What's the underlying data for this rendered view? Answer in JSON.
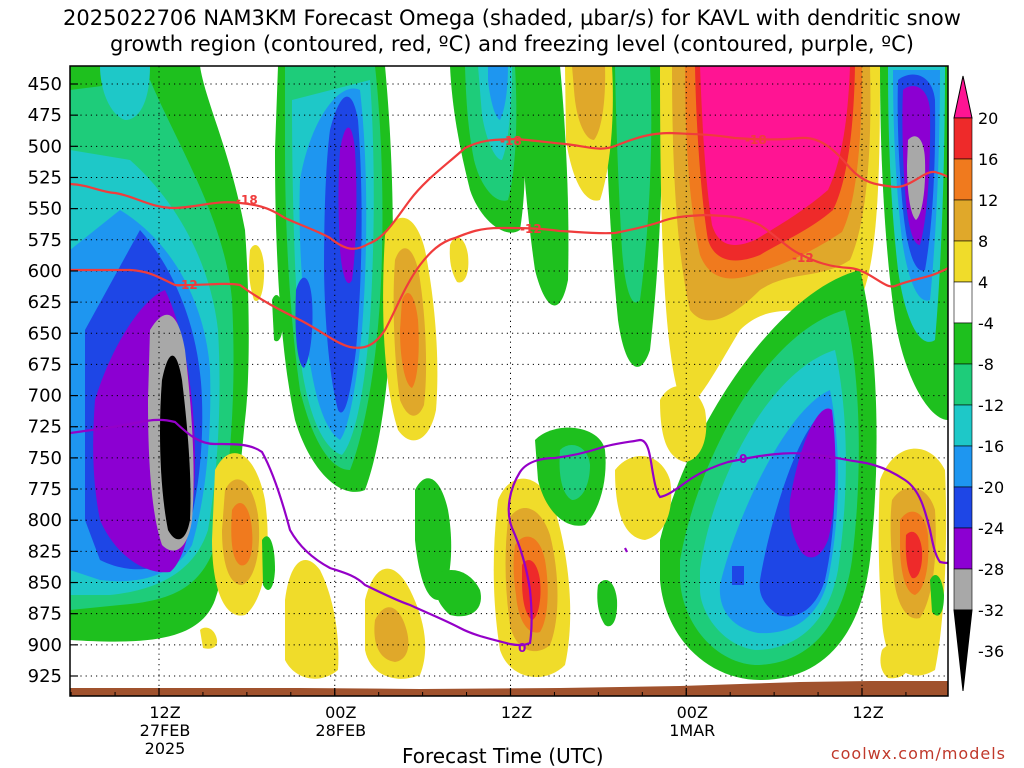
{
  "title": {
    "line1": "2025022706 NAM3KM Forecast Omega (shaded, µbar/s) for KAVL with dendritic snow",
    "line2": "growth region (contoured, red, ºC) and freezing level (contoured, purple, ºC)"
  },
  "credit": "coolwx.com/models",
  "chart_data": {
    "type": "heatmap",
    "xlabel": "Forecast Time (UTC)",
    "ylabel": "",
    "y_levels": [
      450,
      475,
      500,
      525,
      550,
      575,
      600,
      625,
      650,
      675,
      700,
      725,
      750,
      775,
      800,
      825,
      850,
      875,
      900,
      925
    ],
    "ylim": [
      450,
      937
    ],
    "x_ticks": [
      {
        "hour": 6,
        "line1": "12Z",
        "line2": "27FEB",
        "line3": "2025"
      },
      {
        "hour": 18,
        "line1": "00Z",
        "line2": "28FEB",
        "line3": ""
      },
      {
        "hour": 30,
        "line1": "12Z",
        "line2": "",
        "line3": ""
      },
      {
        "hour": 42,
        "line1": "00Z",
        "line2": "1MAR",
        "line3": ""
      },
      {
        "hour": 54,
        "line1": "12Z",
        "line2": "",
        "line3": ""
      }
    ],
    "xlim": [
      0,
      60
    ],
    "colorbar": {
      "labels": [
        "20",
        "16",
        "12",
        "8",
        "4",
        "-4",
        "-8",
        "-12",
        "-16",
        "-20",
        "-24",
        "-28",
        "-32",
        "-36"
      ],
      "colors": [
        "#ff1493",
        "#ee2a2a",
        "#f07a1e",
        "#e0a82a",
        "#f0dc2a",
        "#ffffff",
        "#1ec01e",
        "#1ecc7a",
        "#1ec8c8",
        "#1e96f0",
        "#1e46e6",
        "#8c00d2",
        "#a8a8a8",
        "#000000"
      ]
    },
    "contours": [
      {
        "name": "-18",
        "color": "#f03c3c",
        "label": "-18"
      },
      {
        "name": "-12",
        "color": "#f03c3c",
        "label": "-12"
      },
      {
        "name": "0",
        "color": "#9400c8",
        "label": "0"
      }
    ]
  }
}
